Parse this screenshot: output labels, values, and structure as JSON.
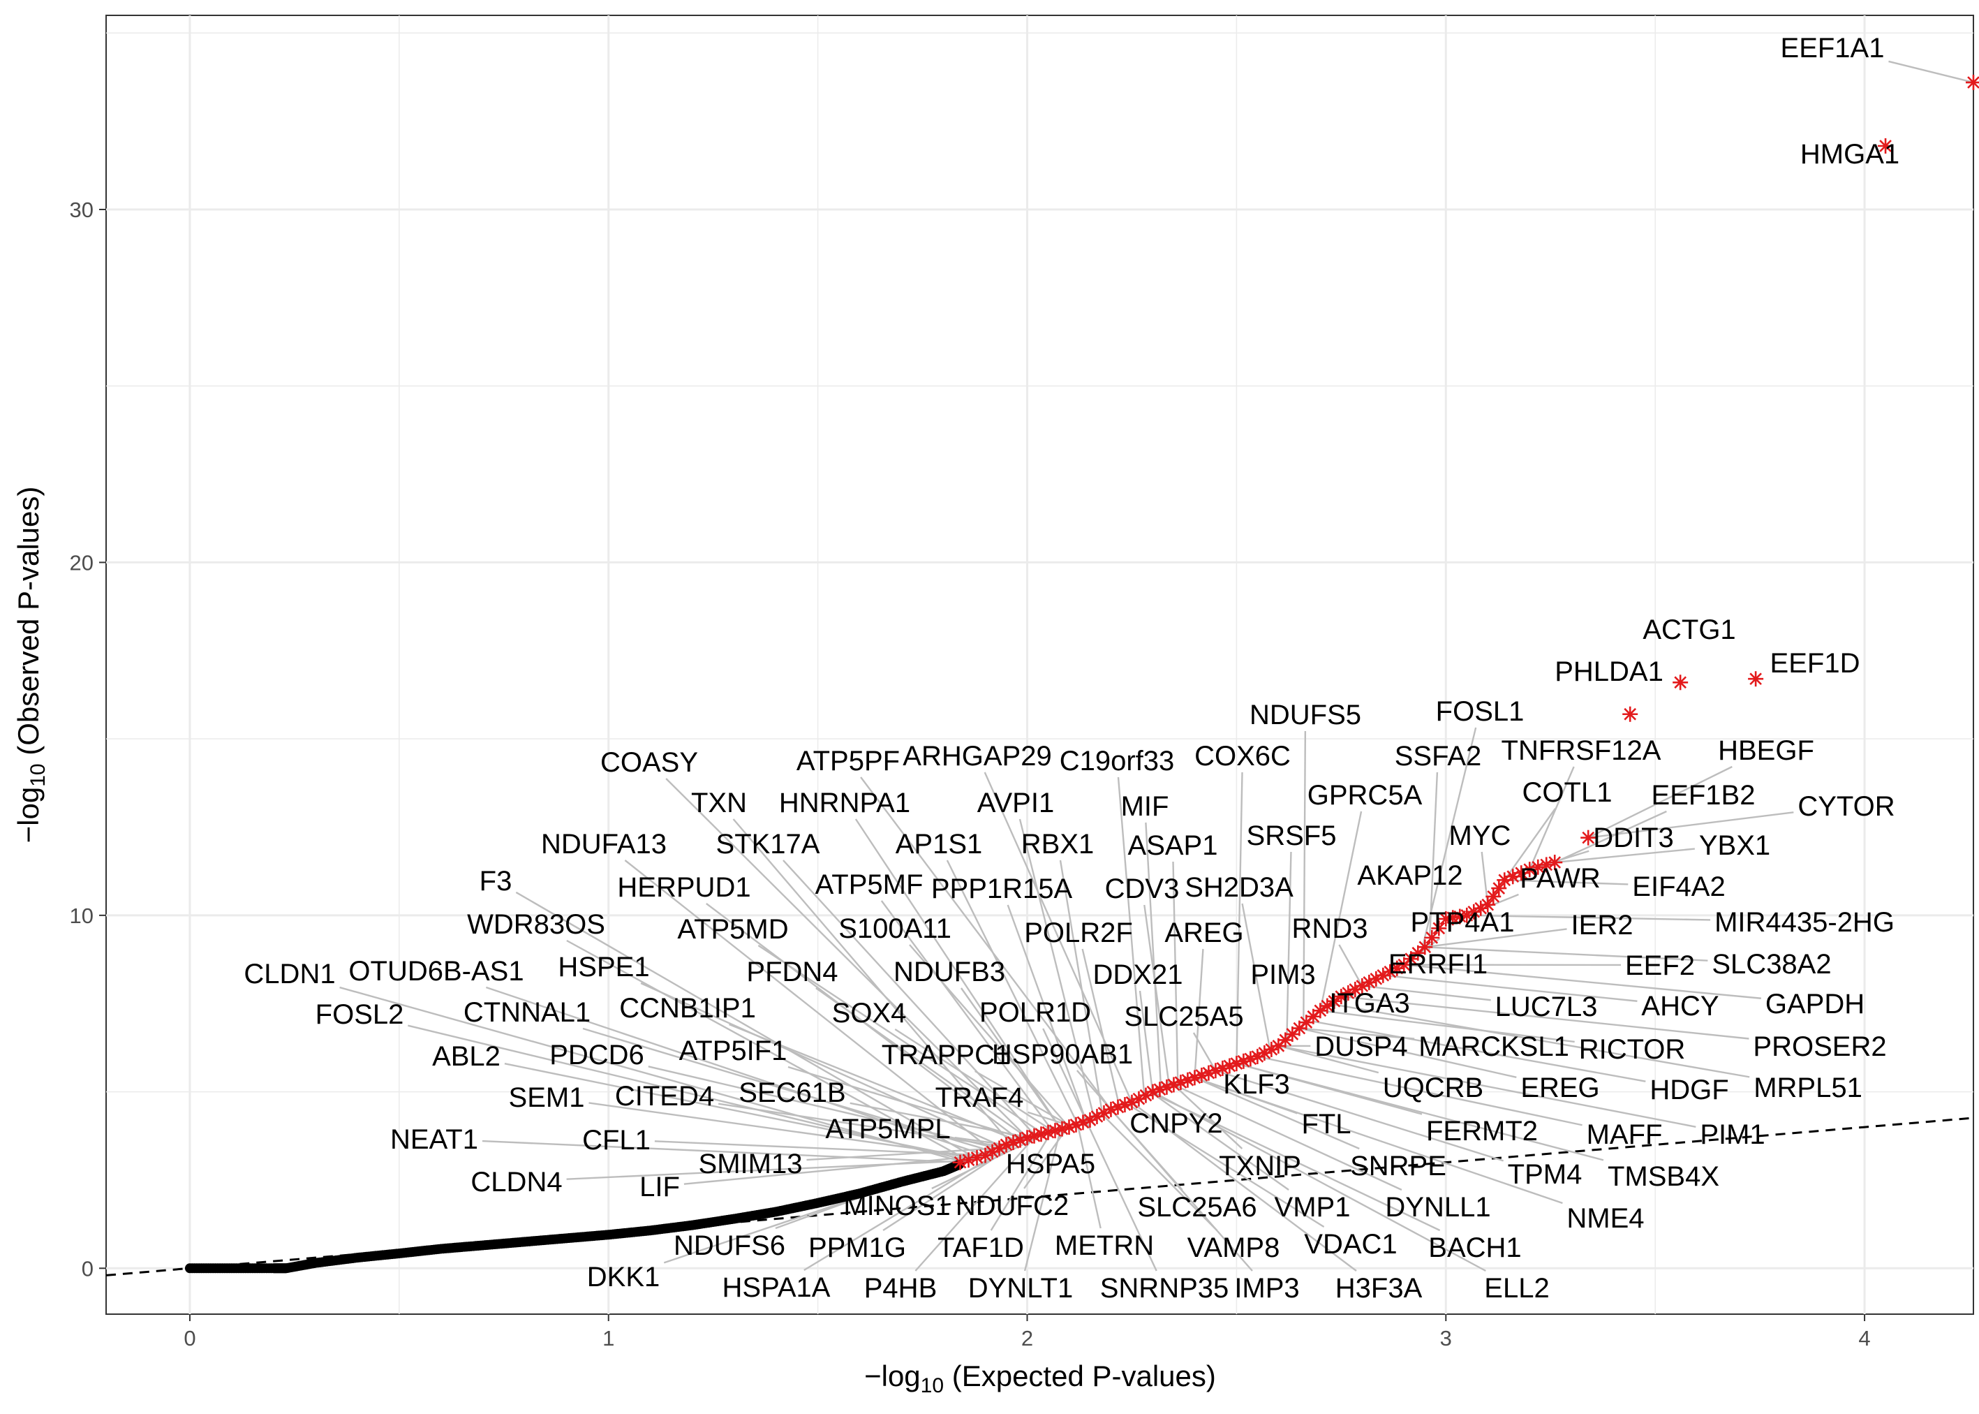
{
  "chart_data": {
    "type": "scatter",
    "title": "",
    "xlabel": "−log10 (Expected P-values)",
    "ylabel": "−log10 (Observed P-values)",
    "xlabel_parts": {
      "prefix": "−log",
      "sub": "10",
      "suffix": " (Expected P-values)"
    },
    "ylabel_parts": {
      "prefix": "−log",
      "sub": "10",
      "suffix": " (Observed P-values)"
    },
    "xlim": [
      -0.2,
      4.26
    ],
    "ylim": [
      -1.3,
      35.5
    ],
    "x_ticks": [
      0,
      1,
      2,
      3,
      4
    ],
    "y_ticks": [
      0,
      10,
      20,
      30
    ],
    "grid": true,
    "legend": "none",
    "colors": {
      "background_points": "#000000",
      "highlight_points": "#e31a1c",
      "reference_line": "#000000",
      "label_segments": "#bdbdbd",
      "grid": "#ebebeb",
      "panel_border": "#333333"
    },
    "reference_line": {
      "type": "y=x",
      "style": "dashed"
    },
    "background_points": {
      "description": "null genes, black",
      "x": [
        0.0,
        0.1,
        0.2,
        0.23,
        0.3,
        0.4,
        0.5,
        0.6,
        0.7,
        0.8,
        0.9,
        1.0,
        1.1,
        1.2,
        1.3,
        1.4,
        1.5,
        1.6,
        1.7,
        1.8,
        1.84
      ],
      "y": [
        0.0,
        0.0,
        0.0,
        0.0,
        0.15,
        0.3,
        0.42,
        0.55,
        0.65,
        0.75,
        0.85,
        0.95,
        1.07,
        1.22,
        1.4,
        1.6,
        1.85,
        2.12,
        2.45,
        2.75,
        2.95
      ]
    },
    "highlight_points": {
      "description": "significant genes, red asterisks",
      "x": [
        1.84,
        1.9,
        1.95,
        2.0,
        2.05,
        2.1,
        2.15,
        2.2,
        2.25,
        2.3,
        2.35,
        2.4,
        2.45,
        2.5,
        2.55,
        2.6,
        2.65,
        2.7,
        2.75,
        2.8,
        2.85,
        2.9,
        2.95,
        3.0,
        3.05,
        3.1,
        3.14,
        3.2,
        3.26,
        3.34,
        3.44,
        3.56,
        3.74,
        4.05,
        4.26
      ],
      "y": [
        3.0,
        3.2,
        3.5,
        3.7,
        3.85,
        4.0,
        4.2,
        4.5,
        4.7,
        5.0,
        5.2,
        5.4,
        5.6,
        5.8,
        6.0,
        6.3,
        6.8,
        7.3,
        7.7,
        8.0,
        8.3,
        8.6,
        9.1,
        9.9,
        10.0,
        10.3,
        11.0,
        11.3,
        11.5,
        12.2,
        15.7,
        16.6,
        16.7,
        31.8,
        33.6
      ]
    },
    "labels": [
      {
        "text": "EEF1A1",
        "x": 4.26,
        "y": 33.6
      },
      {
        "text": "HMGA1",
        "x": 4.05,
        "y": 31.8
      },
      {
        "text": "ACTG1",
        "x": 3.56,
        "y": 16.6
      },
      {
        "text": "EEF1D",
        "x": 3.74,
        "y": 16.7
      },
      {
        "text": "PHLDA1",
        "x": 3.44,
        "y": 15.7
      },
      {
        "text": "NDUFS5",
        "x": 2.66,
        "y": 7.0
      },
      {
        "text": "FOSL1",
        "x": 2.94,
        "y": 8.9
      },
      {
        "text": "COASY",
        "x": 2.0,
        "y": 3.7
      },
      {
        "text": "ATP5PF",
        "x": 2.2,
        "y": 4.5
      },
      {
        "text": "ARHGAP29",
        "x": 2.25,
        "y": 4.7
      },
      {
        "text": "C19orf33",
        "x": 2.28,
        "y": 4.85
      },
      {
        "text": "COX6C",
        "x": 2.5,
        "y": 5.8
      },
      {
        "text": "SSFA2",
        "x": 2.96,
        "y": 9.0
      },
      {
        "text": "TNFRSF12A",
        "x": 3.2,
        "y": 11.3
      },
      {
        "text": "HBEGF",
        "x": 3.34,
        "y": 12.2
      },
      {
        "text": "TXN",
        "x": 1.96,
        "y": 3.55
      },
      {
        "text": "HNRNPA1",
        "x": 2.08,
        "y": 3.95
      },
      {
        "text": "AVPI1",
        "x": 2.16,
        "y": 4.25
      },
      {
        "text": "MIF",
        "x": 2.32,
        "y": 5.0
      },
      {
        "text": "GPRC5A",
        "x": 2.7,
        "y": 7.3
      },
      {
        "text": "COTL1",
        "x": 3.14,
        "y": 11.0
      },
      {
        "text": "EEF1B2",
        "x": 3.26,
        "y": 11.5
      },
      {
        "text": "CYTOR",
        "x": 3.34,
        "y": 12.2
      },
      {
        "text": "NDUFA13",
        "x": 1.92,
        "y": 3.3
      },
      {
        "text": "STK17A",
        "x": 2.02,
        "y": 3.75
      },
      {
        "text": "AP1S1",
        "x": 2.12,
        "y": 4.1
      },
      {
        "text": "RBX1",
        "x": 2.18,
        "y": 4.35
      },
      {
        "text": "ASAP1",
        "x": 2.36,
        "y": 5.15
      },
      {
        "text": "SRSF5",
        "x": 2.62,
        "y": 6.5
      },
      {
        "text": "MYC",
        "x": 3.1,
        "y": 10.3
      },
      {
        "text": "DDIT3",
        "x": 3.2,
        "y": 11.3
      },
      {
        "text": "YBX1",
        "x": 3.26,
        "y": 11.5
      },
      {
        "text": "F3",
        "x": 1.88,
        "y": 3.1
      },
      {
        "text": "HERPUD1",
        "x": 1.98,
        "y": 3.65
      },
      {
        "text": "ATP5MF",
        "x": 2.06,
        "y": 3.9
      },
      {
        "text": "PPP1R15A",
        "x": 2.14,
        "y": 4.2
      },
      {
        "text": "CDV3",
        "x": 2.34,
        "y": 5.1
      },
      {
        "text": "SH2D3A",
        "x": 2.58,
        "y": 6.2
      },
      {
        "text": "AKAP12",
        "x": 3.0,
        "y": 9.9
      },
      {
        "text": "PAWR",
        "x": 3.05,
        "y": 10.0
      },
      {
        "text": "EIF4A2",
        "x": 3.14,
        "y": 11.0
      },
      {
        "text": "WDR83OS",
        "x": 1.86,
        "y": 3.05
      },
      {
        "text": "ATP5MD",
        "x": 2.04,
        "y": 3.8
      },
      {
        "text": "S100A11",
        "x": 2.1,
        "y": 4.0
      },
      {
        "text": "POLR2F",
        "x": 2.22,
        "y": 4.6
      },
      {
        "text": "AREG",
        "x": 2.4,
        "y": 5.4
      },
      {
        "text": "RND3",
        "x": 2.8,
        "y": 8.0
      },
      {
        "text": "PTP4A1",
        "x": 2.9,
        "y": 8.6
      },
      {
        "text": "IER2",
        "x": 2.95,
        "y": 9.1
      },
      {
        "text": "MIR4435-2HG",
        "x": 3.05,
        "y": 10.0
      },
      {
        "text": "CLDN1",
        "x": 1.85,
        "y": 3.0
      },
      {
        "text": "OTUD6B-AS1",
        "x": 1.9,
        "y": 3.2
      },
      {
        "text": "HSPE1",
        "x": 1.94,
        "y": 3.45
      },
      {
        "text": "PFDN4",
        "x": 2.0,
        "y": 3.7
      },
      {
        "text": "NDUFB3",
        "x": 2.08,
        "y": 3.95
      },
      {
        "text": "DDX21",
        "x": 2.3,
        "y": 4.95
      },
      {
        "text": "PIM3",
        "x": 2.75,
        "y": 7.7
      },
      {
        "text": "ERRFI1",
        "x": 2.85,
        "y": 8.3
      },
      {
        "text": "EEF2",
        "x": 2.9,
        "y": 8.6
      },
      {
        "text": "SLC38A2",
        "x": 2.95,
        "y": 9.1
      },
      {
        "text": "FOSL2",
        "x": 1.86,
        "y": 3.05
      },
      {
        "text": "CTNNAL1",
        "x": 1.92,
        "y": 3.3
      },
      {
        "text": "CCNB1IP1",
        "x": 1.98,
        "y": 3.6
      },
      {
        "text": "SOX4",
        "x": 2.06,
        "y": 3.9
      },
      {
        "text": "POLR1D",
        "x": 2.14,
        "y": 4.2
      },
      {
        "text": "SLC25A5",
        "x": 2.45,
        "y": 5.6
      },
      {
        "text": "ITGA3",
        "x": 2.7,
        "y": 7.3
      },
      {
        "text": "LUC7L3",
        "x": 2.8,
        "y": 8.0
      },
      {
        "text": "AHCY",
        "x": 2.85,
        "y": 8.3
      },
      {
        "text": "GAPDH",
        "x": 2.9,
        "y": 8.6
      },
      {
        "text": "ABL2",
        "x": 1.87,
        "y": 3.1
      },
      {
        "text": "PDCD6",
        "x": 1.93,
        "y": 3.4
      },
      {
        "text": "ATP5IF1",
        "x": 1.99,
        "y": 3.68
      },
      {
        "text": "TRAPPC1",
        "x": 2.1,
        "y": 4.05
      },
      {
        "text": "HSP90AB1",
        "x": 2.2,
        "y": 4.5
      },
      {
        "text": "DUSP4",
        "x": 2.6,
        "y": 6.3
      },
      {
        "text": "MARCKSL1",
        "x": 2.65,
        "y": 6.8
      },
      {
        "text": "RICTOR",
        "x": 2.7,
        "y": 7.3
      },
      {
        "text": "PROSER2",
        "x": 2.75,
        "y": 7.7
      },
      {
        "text": "SEM1",
        "x": 1.88,
        "y": 3.15
      },
      {
        "text": "CITED4",
        "x": 1.94,
        "y": 3.45
      },
      {
        "text": "SEC61B",
        "x": 2.0,
        "y": 3.72
      },
      {
        "text": "TRAF4",
        "x": 2.1,
        "y": 4.05
      },
      {
        "text": "KLF3",
        "x": 2.55,
        "y": 6.0
      },
      {
        "text": "UQCRB",
        "x": 2.6,
        "y": 6.3
      },
      {
        "text": "EREG",
        "x": 2.65,
        "y": 6.8
      },
      {
        "text": "HDGF",
        "x": 2.68,
        "y": 7.0
      },
      {
        "text": "MRPL51",
        "x": 2.72,
        "y": 7.5
      },
      {
        "text": "ATP5MPL",
        "x": 1.95,
        "y": 3.5
      },
      {
        "text": "NEAT1",
        "x": 1.85,
        "y": 3.0
      },
      {
        "text": "CFL1",
        "x": 1.9,
        "y": 3.2
      },
      {
        "text": "CNPY2",
        "x": 2.3,
        "y": 5.0
      },
      {
        "text": "FTL",
        "x": 2.4,
        "y": 5.4
      },
      {
        "text": "FERMT2",
        "x": 2.5,
        "y": 5.8
      },
      {
        "text": "MAFF",
        "x": 2.55,
        "y": 6.0
      },
      {
        "text": "PIM1",
        "x": 2.6,
        "y": 6.3
      },
      {
        "text": "SMIM13",
        "x": 1.93,
        "y": 3.4
      },
      {
        "text": "HSPA5",
        "x": 2.15,
        "y": 4.25
      },
      {
        "text": "TXNIP",
        "x": 2.35,
        "y": 5.2
      },
      {
        "text": "SNRPE",
        "x": 2.4,
        "y": 5.4
      },
      {
        "text": "TPM4",
        "x": 2.45,
        "y": 5.6
      },
      {
        "text": "TMSB4X",
        "x": 2.5,
        "y": 5.8
      },
      {
        "text": "CLDN4",
        "x": 1.86,
        "y": 3.05
      },
      {
        "text": "LIF",
        "x": 1.9,
        "y": 3.2
      },
      {
        "text": "MINOS1",
        "x": 2.05,
        "y": 3.85
      },
      {
        "text": "NDUFC2",
        "x": 2.1,
        "y": 4.05
      },
      {
        "text": "SLC25A6",
        "x": 2.2,
        "y": 4.5
      },
      {
        "text": "VMP1",
        "x": 2.3,
        "y": 4.95
      },
      {
        "text": "DYNLL1",
        "x": 2.35,
        "y": 5.2
      },
      {
        "text": "NME4",
        "x": 2.4,
        "y": 5.4
      },
      {
        "text": "NDUFS6",
        "x": 1.97,
        "y": 3.6
      },
      {
        "text": "PPM1G",
        "x": 2.0,
        "y": 3.72
      },
      {
        "text": "TAF1D",
        "x": 2.06,
        "y": 3.9
      },
      {
        "text": "METRN",
        "x": 2.12,
        "y": 4.1
      },
      {
        "text": "VAMP8",
        "x": 2.18,
        "y": 4.35
      },
      {
        "text": "VDAC1",
        "x": 2.24,
        "y": 4.65
      },
      {
        "text": "BACH1",
        "x": 2.3,
        "y": 4.95
      },
      {
        "text": "DKK1",
        "x": 1.92,
        "y": 3.3
      },
      {
        "text": "HSPA1A",
        "x": 1.98,
        "y": 3.62
      },
      {
        "text": "P4HB",
        "x": 2.02,
        "y": 3.75
      },
      {
        "text": "DYNLT1",
        "x": 2.08,
        "y": 3.95
      },
      {
        "text": "SNRNP35",
        "x": 2.14,
        "y": 4.2
      },
      {
        "text": "IMP3",
        "x": 2.2,
        "y": 4.5
      },
      {
        "text": "H3F3A",
        "x": 2.25,
        "y": 4.7
      },
      {
        "text": "ELL2",
        "x": 2.3,
        "y": 5.0
      }
    ]
  }
}
